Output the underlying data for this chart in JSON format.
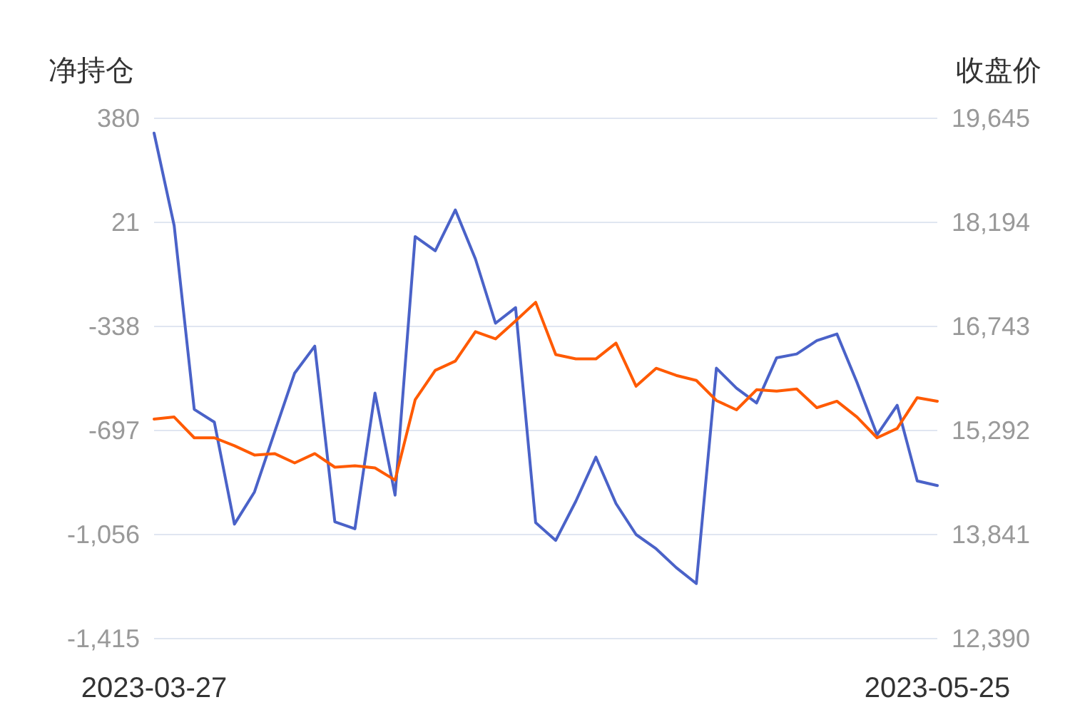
{
  "chart_data": {
    "type": "line",
    "ylabel": "净持仓",
    "y2label": "收盘价",
    "categories": [
      "2023-03-27",
      null,
      null,
      null,
      null,
      null,
      null,
      null,
      null,
      null,
      null,
      null,
      null,
      null,
      null,
      null,
      null,
      null,
      null,
      null,
      null,
      null,
      null,
      null,
      null,
      null,
      null,
      null,
      null,
      null,
      null,
      null,
      null,
      null,
      null,
      null,
      null,
      null,
      null,
      "2023-05-25"
    ],
    "series": [
      {
        "color": "#4a62c8",
        "axis": "y",
        "values": [
          329,
          10,
          -624,
          -668,
          -1020,
          -909,
          -703,
          -499,
          -406,
          -1012,
          -1036,
          -568,
          -920,
          -28,
          -77,
          64,
          -105,
          -327,
          -273,
          -1015,
          -1076,
          -941,
          -789,
          -949,
          -1056,
          -1105,
          -1170,
          -1225,
          -482,
          -551,
          -602,
          -446,
          -433,
          -387,
          -364,
          -531,
          -712,
          -610,
          -871,
          -887
        ]
      },
      {
        "color": "#ff5a00",
        "axis": "y2",
        "values": [
          15450,
          15480,
          15190,
          15190,
          15080,
          14950,
          14970,
          14840,
          14970,
          14780,
          14800,
          14770,
          14600,
          15720,
          16130,
          16260,
          16670,
          16570,
          16820,
          17080,
          16350,
          16290,
          16290,
          16510,
          15910,
          16160,
          16060,
          15990,
          15710,
          15580,
          15860,
          15840,
          15870,
          15610,
          15700,
          15480,
          15190,
          15320,
          15750,
          15700
        ]
      }
    ],
    "ylim": [
      -1415,
      380
    ],
    "yticks": [
      {
        "value": -1415,
        "label": "-1,415"
      },
      {
        "value": -1056,
        "label": "-1,056"
      },
      -697,
      -338,
      21,
      380
    ],
    "y2lim": [
      12390,
      19645
    ],
    "y2ticks": [
      {
        "value": 12390,
        "label": "12,390"
      },
      {
        "value": 13841,
        "label": "13,841"
      },
      {
        "value": 15292,
        "label": "15,292"
      },
      {
        "value": 16743,
        "label": "16,743"
      },
      {
        "value": 18194,
        "label": "18,194"
      },
      {
        "value": 19645,
        "label": "19,645"
      }
    ],
    "grid": "y",
    "marker": "none",
    "line_style": "solid"
  }
}
